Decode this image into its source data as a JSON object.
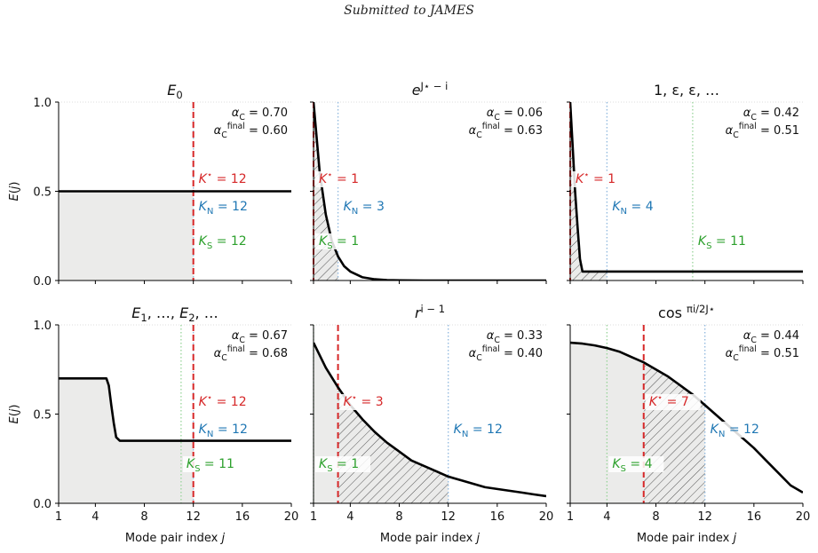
{
  "header": "Submitted to JAMES",
  "colors": {
    "kstar": "#d62728",
    "kn": "#1f77b4",
    "ks": "#2ca02c",
    "curve": "#000000",
    "fill": "#ebebea",
    "hatch": "#555555",
    "dotted_kn": "#8fb8de",
    "dotted_ks": "#98d49a"
  },
  "chart_data": [
    {
      "type": "line",
      "title": "E_0",
      "title_base": "E",
      "title_sub": "0",
      "ylabel": "E(j)",
      "xlabel": "",
      "xlim": [
        1,
        20
      ],
      "ylim": [
        0,
        1
      ],
      "xticks": [
        "1",
        "4",
        "8",
        "12",
        "16",
        "20"
      ],
      "yticks": [
        "0.0",
        "0.5",
        "1.0"
      ],
      "alpha_c": "α_C = 0.70",
      "alpha_final": "α_C^final = 0.60",
      "kstar": 12,
      "kstar_label": "K* = 12",
      "kn": 12,
      "kn_label": "K_N = 12",
      "ks": 12,
      "ks_label": "K_S = 12",
      "x": [
        1,
        20
      ],
      "y": [
        0.5,
        0.5
      ]
    },
    {
      "type": "line",
      "title": "e^{J*-i}",
      "ylabel": "",
      "xlabel": "",
      "xlim": [
        1,
        20
      ],
      "ylim": [
        0,
        1
      ],
      "xticks": [
        "1",
        "4",
        "8",
        "12",
        "16",
        "20"
      ],
      "yticks": [
        "0.0",
        "0.5",
        "1.0"
      ],
      "alpha_c": "α_C = 0.06",
      "alpha_final": "α_C^final = 0.63",
      "kstar": 1,
      "kstar_label": "K* = 1",
      "kn": 3,
      "kn_label": "K_N = 3",
      "ks": 1,
      "ks_label": "K_S = 1",
      "x": [
        1,
        1.5,
        2,
        2.5,
        3,
        3.5,
        4,
        5,
        6,
        7,
        8,
        10,
        12,
        14,
        16,
        18,
        20
      ],
      "y": [
        1.0,
        0.61,
        0.37,
        0.22,
        0.135,
        0.08,
        0.05,
        0.018,
        0.007,
        0.002,
        0.001,
        0.0,
        0.0,
        0.0,
        0.0,
        0.0,
        0.0
      ]
    },
    {
      "type": "line",
      "title": "1, ε, ε, …",
      "ylabel": "",
      "xlabel": "",
      "xlim": [
        1,
        20
      ],
      "ylim": [
        0,
        1
      ],
      "xticks": [
        "1",
        "4",
        "8",
        "12",
        "16",
        "20"
      ],
      "yticks": [
        "0.0",
        "0.5",
        "1.0"
      ],
      "alpha_c": "α_C = 0.42",
      "alpha_final": "α_C^final = 0.51",
      "kstar": 1,
      "kstar_label": "K* = 1",
      "kn": 4,
      "kn_label": "K_N = 4",
      "ks": 11,
      "ks_label": "K_S = 11",
      "x": [
        1,
        1.2,
        1.4,
        1.6,
        1.8,
        2,
        3,
        12,
        20
      ],
      "y": [
        1.0,
        0.75,
        0.5,
        0.3,
        0.12,
        0.05,
        0.05,
        0.05,
        0.05
      ]
    },
    {
      "type": "line",
      "title": "E_1, …, E_2, …",
      "ylabel": "E(j)",
      "xlabel": "Mode pair index j",
      "xlim": [
        1,
        20
      ],
      "ylim": [
        0,
        1
      ],
      "xticks": [
        "1",
        "4",
        "8",
        "12",
        "16",
        "20"
      ],
      "yticks": [
        "0.0",
        "0.5",
        "1.0"
      ],
      "alpha_c": "α_C = 0.67",
      "alpha_final": "α_C^final = 0.68",
      "kstar": 12,
      "kstar_label": "K* = 12",
      "kn": 12,
      "kn_label": "K_N = 12",
      "ks": 11,
      "ks_label": "K_S = 11",
      "x": [
        1,
        4.9,
        5.1,
        5.3,
        5.5,
        5.7,
        6,
        20
      ],
      "y": [
        0.7,
        0.7,
        0.66,
        0.55,
        0.45,
        0.37,
        0.35,
        0.35
      ]
    },
    {
      "type": "line",
      "title": "r^{i-1}",
      "ylabel": "",
      "xlabel": "Mode pair index j",
      "xlim": [
        1,
        20
      ],
      "ylim": [
        0,
        1
      ],
      "xticks": [
        "1",
        "4",
        "8",
        "12",
        "16",
        "20"
      ],
      "yticks": [
        "0.0",
        "0.5",
        "1.0"
      ],
      "alpha_c": "α_C = 0.33",
      "alpha_final": "α_C^final = 0.40",
      "kstar": 3,
      "kstar_label": "K* = 3",
      "kn": 12,
      "kn_label": "K_N = 12",
      "ks": 1,
      "ks_label": "K_S = 1",
      "x": [
        1,
        2,
        3,
        4,
        5,
        6,
        7,
        8,
        9,
        10,
        11,
        12,
        13,
        14,
        15,
        16,
        17,
        18,
        19,
        20
      ],
      "y": [
        0.9,
        0.76,
        0.65,
        0.55,
        0.47,
        0.4,
        0.34,
        0.29,
        0.24,
        0.21,
        0.18,
        0.15,
        0.13,
        0.11,
        0.09,
        0.08,
        0.07,
        0.06,
        0.05,
        0.04
      ]
    },
    {
      "type": "line",
      "title": "cos (πi / 2J*)",
      "ylabel": "",
      "xlabel": "Mode pair index j",
      "xlim": [
        1,
        20
      ],
      "ylim": [
        0,
        1
      ],
      "xticks": [
        "1",
        "4",
        "8",
        "12",
        "16",
        "20"
      ],
      "yticks": [
        "0.0",
        "0.5",
        "1.0"
      ],
      "alpha_c": "α_C = 0.44",
      "alpha_final": "α_C^final = 0.51",
      "kstar": 7,
      "kstar_label": "K* = 7",
      "kn": 12,
      "kn_label": "K_N = 12",
      "ks": 4,
      "ks_label": "K_S = 4",
      "x": [
        1,
        2,
        3,
        4,
        5,
        6,
        7,
        8,
        9,
        10,
        11,
        12,
        13,
        14,
        15,
        16,
        17,
        18,
        19,
        20
      ],
      "y": [
        0.9,
        0.895,
        0.885,
        0.87,
        0.85,
        0.82,
        0.79,
        0.75,
        0.71,
        0.66,
        0.61,
        0.55,
        0.49,
        0.43,
        0.37,
        0.31,
        0.24,
        0.17,
        0.1,
        0.06
      ]
    }
  ]
}
